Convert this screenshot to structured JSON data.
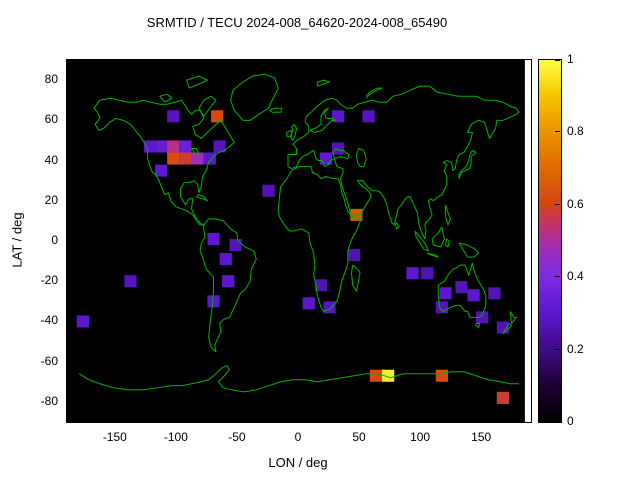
{
  "title": "SRMTID / TECU 2024-008_64620-2024-008_65490",
  "axes": {
    "xlabel": "LON / deg",
    "ylabel": "LAT / deg",
    "x_ticks": [
      -150,
      -100,
      -50,
      0,
      50,
      100,
      150
    ],
    "y_ticks": [
      80,
      60,
      40,
      20,
      0,
      -20,
      -40,
      -60,
      -80
    ],
    "xlim": [
      -190,
      190
    ],
    "ylim": [
      -90,
      90
    ]
  },
  "colorbar": {
    "ticks": [
      0,
      0.2,
      0.4,
      0.6,
      0.8,
      1
    ],
    "min": 0,
    "max": 1
  },
  "colors": {
    "page_background": "#ffffff",
    "map_background": "#000000",
    "coastline": "#00b400",
    "axis_text": "#000000",
    "border": "#000000"
  },
  "chart_data": {
    "type": "heatmap",
    "title": "SRMTID / TECU 2024-008_64620-2024-008_65490",
    "xlabel": "LON / deg",
    "ylabel": "LAT / deg",
    "xlim": [
      -190,
      190
    ],
    "ylim": [
      -90,
      90
    ],
    "colorbar_range": [
      0,
      1
    ],
    "cell_size_deg": [
      10,
      6
    ],
    "colormap_stops": [
      [
        0,
        "#000000"
      ],
      [
        0.1,
        "#1e0033"
      ],
      [
        0.2,
        "#3f0a86"
      ],
      [
        0.3,
        "#5c17cf"
      ],
      [
        0.4,
        "#7a2be2"
      ],
      [
        0.48,
        "#a02cb8"
      ],
      [
        0.55,
        "#c53364"
      ],
      [
        0.6,
        "#d44413"
      ],
      [
        0.7,
        "#e06a00"
      ],
      [
        0.8,
        "#ec9300"
      ],
      [
        0.9,
        "#f6c400"
      ],
      [
        1,
        "#fdff45"
      ]
    ],
    "cells": [
      [
        -103,
        62,
        0.28
      ],
      [
        -67,
        62,
        0.62
      ],
      [
        32,
        62,
        0.3
      ],
      [
        57,
        62,
        0.28
      ],
      [
        -122,
        47,
        0.3
      ],
      [
        -112,
        47,
        0.33
      ],
      [
        -103,
        47,
        0.52
      ],
      [
        -93,
        47,
        0.35
      ],
      [
        -65,
        47,
        0.28
      ],
      [
        -103,
        41,
        0.63
      ],
      [
        -93,
        41,
        0.58
      ],
      [
        -83,
        41,
        0.48
      ],
      [
        -73,
        41,
        0.3
      ],
      [
        -113,
        35,
        0.3
      ],
      [
        22,
        41,
        0.32
      ],
      [
        32,
        46,
        0.27
      ],
      [
        -25,
        25,
        0.27
      ],
      [
        47,
        13,
        0.65
      ],
      [
        -70,
        1,
        0.3
      ],
      [
        -52,
        -2,
        0.27
      ],
      [
        -60,
        -9,
        0.3
      ],
      [
        -58,
        -20,
        0.3
      ],
      [
        -70,
        -30,
        0.3
      ],
      [
        -138,
        -20,
        0.28
      ],
      [
        8,
        -31,
        0.3
      ],
      [
        25,
        -33,
        0.28
      ],
      [
        18,
        -22,
        0.26
      ],
      [
        45,
        -7,
        0.26
      ],
      [
        93,
        -16,
        0.3
      ],
      [
        105,
        -16,
        0.26
      ],
      [
        120,
        -26,
        0.3
      ],
      [
        133,
        -23,
        0.27
      ],
      [
        143,
        -27,
        0.3
      ],
      [
        117,
        -33,
        0.27
      ],
      [
        160,
        -26,
        0.27
      ],
      [
        150,
        -38,
        0.27
      ],
      [
        167,
        -43,
        0.27
      ],
      [
        -177,
        -40,
        0.3
      ],
      [
        63,
        -67,
        0.62
      ],
      [
        73,
        -67,
        0.97
      ],
      [
        117,
        -67,
        0.62
      ],
      [
        167,
        -78,
        0.58
      ]
    ]
  }
}
